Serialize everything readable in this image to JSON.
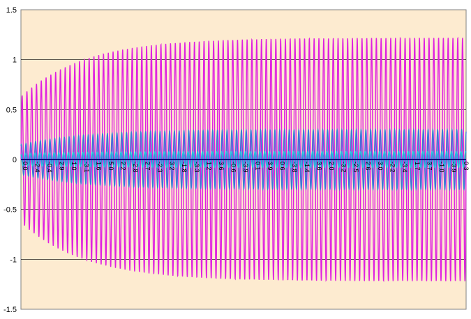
{
  "chart_data": {
    "type": "line",
    "title": "",
    "xlabel": "",
    "ylabel": "",
    "ylim": [
      -1.5,
      1.5
    ],
    "yticks": [
      -1.5,
      -1,
      -0.5,
      0,
      0.5,
      1,
      1.5
    ],
    "ytick_labels": [
      "-1.5",
      "-1",
      "-0.5",
      "0",
      "0.5",
      "1",
      "1.5"
    ],
    "xtick_labels": [
      "0.0",
      "-2.4",
      "-0.4",
      "2.9",
      "1.0",
      "-3.1",
      "1.6",
      "5.0",
      "2.2",
      "-2.8",
      "2.7",
      "-2.3",
      "3.2",
      "-1.8",
      "-3.3",
      "1.2",
      "3.6",
      "-0.6",
      "-3.9",
      "0.1",
      "3.9",
      "0.6",
      "-3.8",
      "-1.4",
      "3.6",
      "2.0",
      "-3.2",
      "-2.5",
      "2.6",
      "3.0",
      "-2.2",
      "-3.4",
      "1.7",
      "3.7",
      "-1.0",
      "-3.9",
      "0.3"
    ],
    "grid": "horizontal",
    "legend": "none",
    "plot_background": "#FDEBD0",
    "series": [
      {
        "color": "#E020E0",
        "envelope_start": 0.63,
        "envelope_steady": 1.22,
        "cycles": 93,
        "phase": 0.0
      },
      {
        "color": "#3878D8",
        "envelope_start": 0.15,
        "envelope_steady": 0.3,
        "cycles": 93,
        "phase": 1.2
      },
      {
        "color": "#20C0E0",
        "envelope_start": 0.06,
        "envelope_steady": 0.08,
        "cycles": 93,
        "phase": 2.1
      },
      {
        "color": "#000080",
        "envelope_start": 0.0,
        "envelope_steady": 0.0,
        "cycles": 0,
        "phase": 0.0
      }
    ]
  }
}
